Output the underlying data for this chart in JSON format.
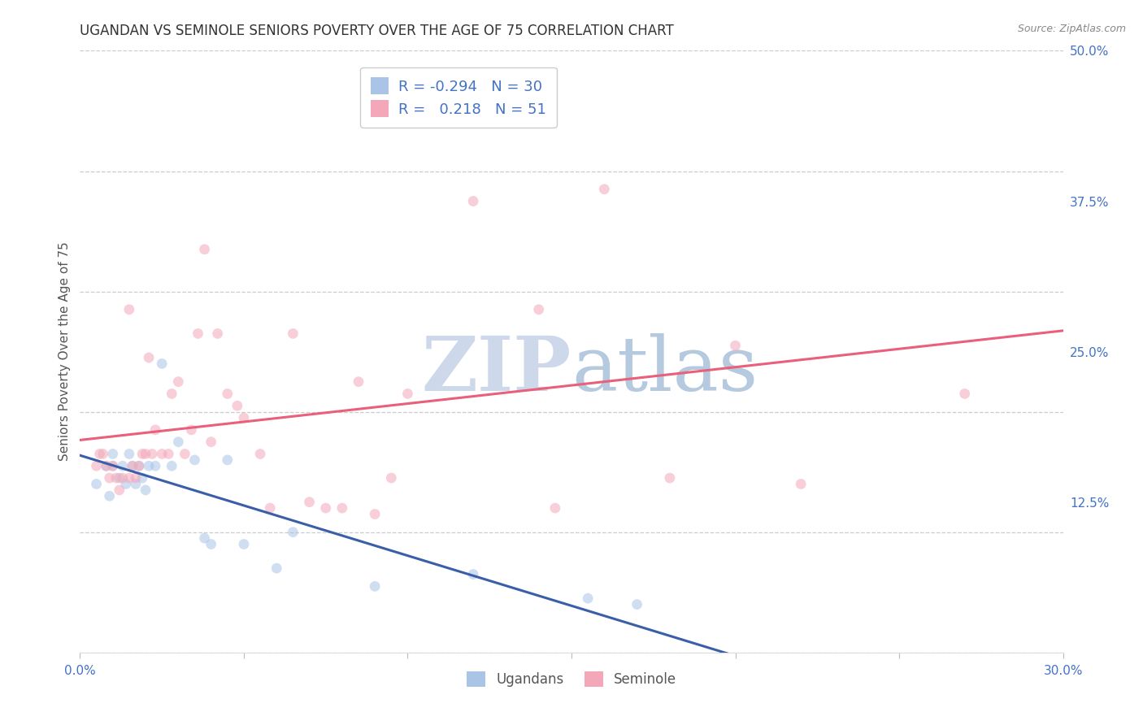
{
  "title": "UGANDAN VS SEMINOLE SENIORS POVERTY OVER THE AGE OF 75 CORRELATION CHART",
  "source": "Source: ZipAtlas.com",
  "ylabel": "Seniors Poverty Over the Age of 75",
  "xlim": [
    0.0,
    0.3
  ],
  "ylim": [
    0.0,
    0.5
  ],
  "xticks": [
    0.0,
    0.05,
    0.1,
    0.15,
    0.2,
    0.25,
    0.3
  ],
  "xticklabels": [
    "0.0%",
    "",
    "",
    "",
    "",
    "",
    "30.0%"
  ],
  "yticks": [
    0.0,
    0.125,
    0.25,
    0.375,
    0.5
  ],
  "yticklabels_right": [
    "",
    "12.5%",
    "25.0%",
    "37.5%",
    "50.0%"
  ],
  "grid_color": "#cccccc",
  "bg_color": "#ffffff",
  "ugandan_scatter_color": "#aac4e8",
  "seminole_scatter_color": "#f4a7b9",
  "ugandan_line_color": "#3a5fa8",
  "seminole_line_color": "#e8607a",
  "tick_color": "#4472c4",
  "ugandan_R": -0.294,
  "ugandan_N": 30,
  "seminole_R": 0.218,
  "seminole_N": 51,
  "ugandan_x": [
    0.005,
    0.008,
    0.009,
    0.01,
    0.01,
    0.012,
    0.013,
    0.014,
    0.015,
    0.016,
    0.017,
    0.018,
    0.019,
    0.02,
    0.021,
    0.023,
    0.025,
    0.028,
    0.03,
    0.035,
    0.038,
    0.04,
    0.045,
    0.05,
    0.06,
    0.065,
    0.09,
    0.12,
    0.155,
    0.17
  ],
  "ugandan_y": [
    0.14,
    0.155,
    0.13,
    0.155,
    0.165,
    0.145,
    0.155,
    0.14,
    0.165,
    0.155,
    0.14,
    0.155,
    0.145,
    0.135,
    0.155,
    0.155,
    0.24,
    0.155,
    0.175,
    0.16,
    0.095,
    0.09,
    0.16,
    0.09,
    0.07,
    0.1,
    0.055,
    0.065,
    0.045,
    0.04
  ],
  "seminole_x": [
    0.005,
    0.006,
    0.007,
    0.008,
    0.009,
    0.01,
    0.011,
    0.012,
    0.013,
    0.015,
    0.015,
    0.016,
    0.017,
    0.018,
    0.019,
    0.02,
    0.021,
    0.022,
    0.023,
    0.025,
    0.027,
    0.028,
    0.03,
    0.032,
    0.034,
    0.036,
    0.038,
    0.04,
    0.042,
    0.045,
    0.048,
    0.05,
    0.055,
    0.058,
    0.065,
    0.07,
    0.075,
    0.08,
    0.085,
    0.09,
    0.095,
    0.1,
    0.11,
    0.12,
    0.14,
    0.145,
    0.16,
    0.18,
    0.2,
    0.22,
    0.27
  ],
  "seminole_y": [
    0.155,
    0.165,
    0.165,
    0.155,
    0.145,
    0.155,
    0.145,
    0.135,
    0.145,
    0.285,
    0.145,
    0.155,
    0.145,
    0.155,
    0.165,
    0.165,
    0.245,
    0.165,
    0.185,
    0.165,
    0.165,
    0.215,
    0.225,
    0.165,
    0.185,
    0.265,
    0.335,
    0.175,
    0.265,
    0.215,
    0.205,
    0.195,
    0.165,
    0.12,
    0.265,
    0.125,
    0.12,
    0.12,
    0.225,
    0.115,
    0.145,
    0.215,
    0.445,
    0.375,
    0.285,
    0.12,
    0.385,
    0.145,
    0.255,
    0.14,
    0.215
  ],
  "marker_size": 85,
  "marker_alpha": 0.55,
  "line_width": 2.2,
  "title_fontsize": 12,
  "tick_fontsize": 11,
  "ylabel_fontsize": 11,
  "legend_fontsize": 13,
  "source_fontsize": 9,
  "legend_text_color": "#4472c4",
  "watermark_zip_color": "#cdd8ea",
  "watermark_atlas_color": "#b5c9df"
}
